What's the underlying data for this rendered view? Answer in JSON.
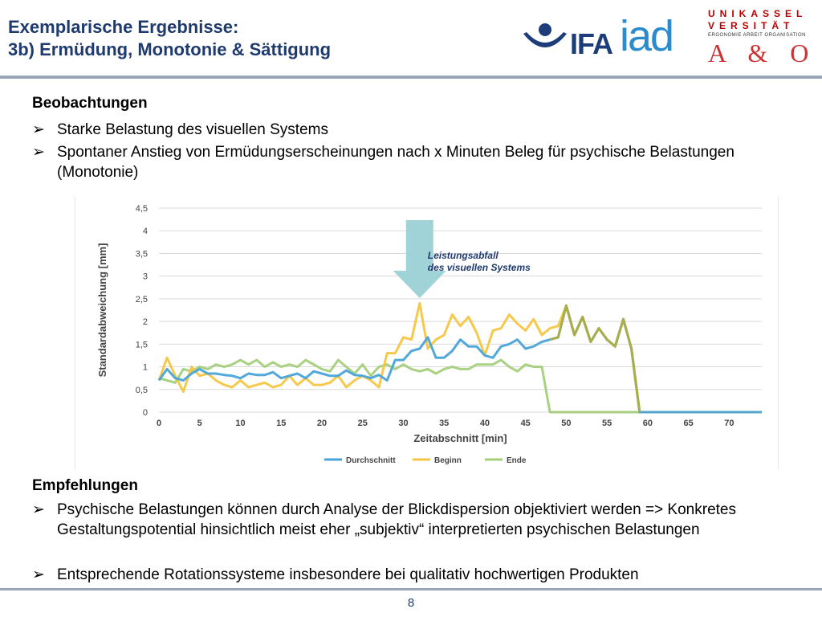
{
  "header": {
    "title_line1": "Exemplarische Ergebnisse:",
    "title_line2": "3b) Ermüdung, Monotonie & Sättigung"
  },
  "logos": {
    "ifa": "IFA",
    "iad": "iad",
    "uni_row1": "UNIKASSEL",
    "uni_row2": "VERSITÄT",
    "uni_sub": "ERGONOMIE ARBEIT ORGANISATION",
    "uni_ao": "A & O"
  },
  "observations": {
    "heading": "Beobachtungen",
    "bullets": [
      "Starke Belastung des visuellen Systems",
      "Spontaner Anstieg  von Ermüdungserscheinungen nach x Minuten Beleg für psychische Belastungen (Monotonie)"
    ]
  },
  "recommendations": {
    "heading": "Empfehlungen",
    "bullets": [
      "Psychische Belastungen können durch Analyse der Blickdispersion objektiviert werden => Konkretes Gestaltungspotential hinsichtlich meist eher „subjektiv“ interpretierten psychischen Belastungen",
      "Entsprechende Rotationssysteme insbesondere bei qualitativ hochwertigen Produkten"
    ]
  },
  "bullet_marker": "➢",
  "page_number": "8",
  "colors": {
    "title": "#1f3a6e",
    "durchschnitt": "#4aa3d9",
    "beginn": "#f5c542",
    "ende": "#a3cf7a",
    "arrow": "#9fd3d8"
  },
  "chart_data": {
    "type": "line",
    "xlabel": "Zeitabschnitt [min]",
    "ylabel": "Standardabweichung [mm]",
    "xlim": [
      0,
      74
    ],
    "ylim": [
      0,
      4.5
    ],
    "xticks": [
      0,
      5,
      10,
      15,
      20,
      25,
      30,
      35,
      40,
      45,
      50,
      55,
      60,
      65,
      70
    ],
    "yticks": [
      "0",
      "0,5",
      "1",
      "1,5",
      "2",
      "2,5",
      "3",
      "3,5",
      "4",
      "4,5"
    ],
    "grid": true,
    "legend_position": "bottom",
    "annotation": {
      "line1": "Leistungsabfall",
      "line2": "des visuellen Systems",
      "x": 32
    },
    "series": [
      {
        "name": "Durchschnitt",
        "x": [
          0,
          1,
          2,
          3,
          4,
          5,
          6,
          7,
          8,
          9,
          10,
          11,
          12,
          13,
          14,
          15,
          16,
          17,
          18,
          19,
          20,
          21,
          22,
          23,
          24,
          25,
          26,
          27,
          28,
          29,
          30,
          31,
          32,
          33,
          34,
          35,
          36,
          37,
          38,
          39,
          40,
          41,
          42,
          43,
          44,
          45,
          46,
          47,
          48,
          49,
          50,
          51,
          52,
          53,
          54,
          55,
          56,
          57,
          58,
          59,
          60,
          61,
          62,
          63,
          64,
          65,
          66,
          67,
          68,
          69,
          70,
          71,
          72,
          73,
          74
        ],
        "values": [
          0.7,
          0.95,
          0.75,
          0.7,
          0.85,
          0.95,
          0.85,
          0.85,
          0.82,
          0.8,
          0.75,
          0.85,
          0.82,
          0.82,
          0.88,
          0.75,
          0.8,
          0.85,
          0.75,
          0.9,
          0.85,
          0.8,
          0.8,
          0.92,
          0.82,
          0.8,
          0.75,
          0.82,
          0.7,
          1.15,
          1.15,
          1.35,
          1.4,
          1.65,
          1.2,
          1.2,
          1.35,
          1.6,
          1.45,
          1.45,
          1.25,
          1.2,
          1.45,
          1.5,
          1.6,
          1.4,
          1.45,
          1.55,
          1.6,
          1.65,
          2.35,
          1.7,
          2.1,
          1.55,
          1.85,
          1.6,
          1.45,
          2.05,
          1.4,
          0,
          0,
          0,
          0,
          0,
          0,
          0,
          0,
          0,
          0,
          0,
          0,
          0,
          0,
          0,
          0
        ]
      },
      {
        "name": "Beginn",
        "x": [
          0,
          1,
          2,
          3,
          4,
          5,
          6,
          7,
          8,
          9,
          10,
          11,
          12,
          13,
          14,
          15,
          16,
          17,
          18,
          19,
          20,
          21,
          22,
          23,
          24,
          25,
          26,
          27,
          28,
          29,
          30,
          31,
          32,
          33,
          34,
          35,
          36,
          37,
          38,
          39,
          40,
          41,
          42,
          43,
          44,
          45,
          46,
          47,
          48,
          49,
          50,
          51,
          52,
          53,
          54,
          55,
          56,
          57,
          58,
          59,
          60,
          61,
          62,
          63,
          64,
          65,
          66,
          67,
          68,
          69,
          70,
          71,
          72,
          73,
          74
        ],
        "values": [
          0.7,
          1.2,
          0.8,
          0.45,
          1.0,
          0.8,
          0.85,
          0.7,
          0.6,
          0.55,
          0.7,
          0.55,
          0.6,
          0.65,
          0.55,
          0.6,
          0.8,
          0.6,
          0.75,
          0.6,
          0.6,
          0.65,
          0.8,
          0.55,
          0.7,
          0.8,
          0.7,
          0.55,
          1.3,
          1.3,
          1.65,
          1.6,
          2.4,
          1.4,
          1.6,
          1.7,
          2.15,
          1.9,
          2.1,
          1.75,
          1.25,
          1.8,
          1.85,
          2.15,
          1.95,
          1.8,
          2.05,
          1.7,
          1.85,
          1.9,
          2.35,
          1.7,
          2.1,
          1.55,
          1.85,
          1.6,
          1.45,
          2.05,
          1.4,
          0,
          0,
          0,
          0,
          0,
          0,
          0,
          0,
          0,
          0,
          0,
          0,
          0,
          0,
          0,
          0
        ]
      },
      {
        "name": "Ende",
        "x": [
          0,
          1,
          2,
          3,
          4,
          5,
          6,
          7,
          8,
          9,
          10,
          11,
          12,
          13,
          14,
          15,
          16,
          17,
          18,
          19,
          20,
          21,
          22,
          23,
          24,
          25,
          26,
          27,
          28,
          29,
          30,
          31,
          32,
          33,
          34,
          35,
          36,
          37,
          38,
          39,
          40,
          41,
          42,
          43,
          44,
          45,
          46,
          47,
          48,
          49,
          50,
          51,
          52,
          53,
          54,
          55,
          56,
          57,
          58,
          59,
          60,
          61,
          62,
          63,
          64,
          65,
          66,
          67,
          68,
          69,
          70,
          71,
          72,
          73,
          74
        ],
        "values": [
          0.75,
          0.7,
          0.65,
          0.95,
          0.9,
          1.0,
          0.95,
          1.05,
          1.0,
          1.05,
          1.15,
          1.05,
          1.15,
          1.0,
          1.1,
          1.0,
          1.05,
          1.0,
          1.15,
          1.05,
          0.95,
          0.9,
          1.15,
          1.0,
          0.85,
          1.05,
          0.8,
          1.0,
          1.05,
          0.95,
          1.05,
          0.95,
          0.9,
          0.95,
          0.85,
          0.95,
          1.0,
          0.95,
          0.95,
          1.05,
          1.05,
          1.05,
          1.15,
          1.0,
          0.9,
          1.05,
          1.0,
          1.0,
          0.0,
          0,
          0,
          0,
          0,
          0,
          0,
          0,
          0,
          0,
          0,
          0,
          0,
          0,
          0,
          0,
          0,
          0,
          0,
          0,
          0,
          0,
          0,
          0,
          0,
          0,
          0
        ]
      }
    ]
  }
}
